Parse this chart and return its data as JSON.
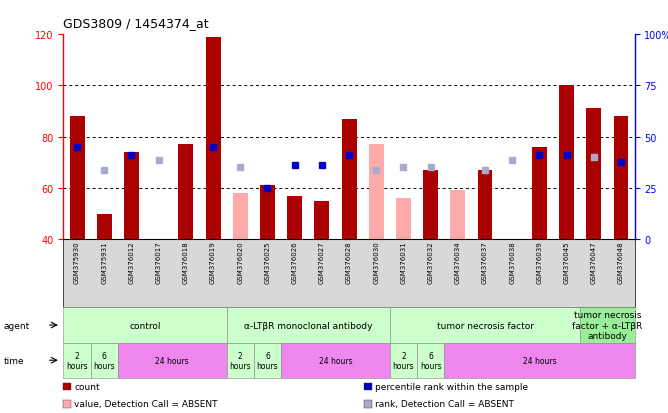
{
  "title": "GDS3809 / 1454374_at",
  "samples": [
    "GSM375930",
    "GSM375931",
    "GSM376012",
    "GSM376017",
    "GSM376018",
    "GSM376019",
    "GSM376020",
    "GSM376025",
    "GSM376026",
    "GSM376027",
    "GSM376028",
    "GSM376030",
    "GSM376031",
    "GSM376032",
    "GSM376034",
    "GSM376037",
    "GSM376038",
    "GSM376039",
    "GSM376045",
    "GSM376047",
    "GSM376048"
  ],
  "count_values": [
    88,
    50,
    74,
    null,
    77,
    119,
    null,
    61,
    57,
    55,
    87,
    null,
    null,
    67,
    null,
    67,
    null,
    76,
    100,
    91,
    88
  ],
  "count_absent": [
    null,
    null,
    null,
    null,
    null,
    null,
    58,
    null,
    null,
    null,
    null,
    77,
    56,
    null,
    59,
    null,
    null,
    null,
    null,
    null,
    null
  ],
  "rank_values": [
    76,
    null,
    73,
    null,
    null,
    76,
    null,
    60,
    69,
    69,
    73,
    null,
    null,
    null,
    null,
    null,
    null,
    73,
    73,
    null,
    70
  ],
  "rank_absent": [
    null,
    67,
    null,
    71,
    null,
    null,
    68,
    null,
    null,
    null,
    null,
    67,
    68,
    68,
    null,
    67,
    71,
    null,
    null,
    72,
    null
  ],
  "ylim_left": [
    40,
    120
  ],
  "ylim_right": [
    0,
    100
  ],
  "left_ticks": [
    40,
    60,
    80,
    100,
    120
  ],
  "right_ticks": [
    0,
    25,
    50,
    75,
    100
  ],
  "right_tick_labels": [
    "0",
    "25",
    "50",
    "75",
    "100%"
  ],
  "color_count": "#aa0000",
  "color_count_absent": "#ffaaaa",
  "color_rank": "#0000cc",
  "color_rank_absent": "#aaaacc",
  "plot_bg": "#ffffff",
  "fig_bg": "#ffffff",
  "grid_color": "#000000",
  "xtick_bg": "#dddddd",
  "agent_row_bg": "#ccffcc",
  "agent_row_bg_last": "#99ee99",
  "time_row_bg_small": "#ccffcc",
  "time_row_bg_large": "#ee88ee",
  "agent_groups": [
    {
      "label": "control",
      "start": 0,
      "end": 5,
      "color": "#ccffcc"
    },
    {
      "label": "α-LTβR monoclonal antibody",
      "start": 6,
      "end": 11,
      "color": "#ccffcc"
    },
    {
      "label": "tumor necrosis factor",
      "start": 12,
      "end": 18,
      "color": "#ccffcc"
    },
    {
      "label": "tumor necrosis\nfactor + α-LTβR\nantibody",
      "start": 19,
      "end": 20,
      "color": "#99ee99"
    }
  ],
  "time_groups": [
    {
      "label": "2\nhours",
      "start": 0,
      "end": 0,
      "color": "#ccffcc"
    },
    {
      "label": "6\nhours",
      "start": 1,
      "end": 1,
      "color": "#ccffcc"
    },
    {
      "label": "24 hours",
      "start": 2,
      "end": 5,
      "color": "#ee88ee"
    },
    {
      "label": "2\nhours",
      "start": 6,
      "end": 6,
      "color": "#ccffcc"
    },
    {
      "label": "6\nhours",
      "start": 7,
      "end": 7,
      "color": "#ccffcc"
    },
    {
      "label": "24 hours",
      "start": 8,
      "end": 11,
      "color": "#ee88ee"
    },
    {
      "label": "2\nhours",
      "start": 12,
      "end": 12,
      "color": "#ccffcc"
    },
    {
      "label": "6\nhours",
      "start": 13,
      "end": 13,
      "color": "#ccffcc"
    },
    {
      "label": "24 hours",
      "start": 14,
      "end": 20,
      "color": "#ee88ee"
    }
  ],
  "legend_items": [
    {
      "label": "count",
      "color": "#aa0000"
    },
    {
      "label": "percentile rank within the sample",
      "color": "#0000cc"
    },
    {
      "label": "value, Detection Call = ABSENT",
      "color": "#ffaaaa"
    },
    {
      "label": "rank, Detection Call = ABSENT",
      "color": "#aaaacc"
    }
  ]
}
